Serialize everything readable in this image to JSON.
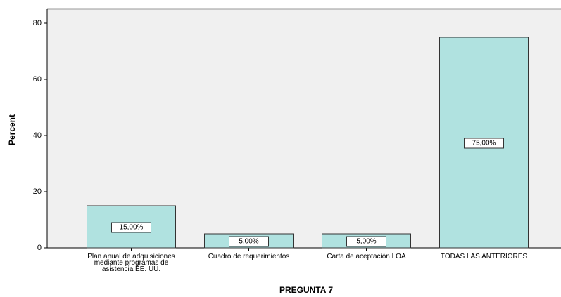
{
  "chart_data": {
    "type": "bar",
    "categories": [
      "Plan anual de adquisiciones mediante programas de asistencia EE. UU.",
      "Cuadro de requerimientos",
      "Carta de aceptación LOA",
      "TODAS LAS ANTERIORES"
    ],
    "values": [
      15,
      5,
      5,
      75
    ],
    "value_labels": [
      "15,00%",
      "5,00%",
      "5,00%",
      "75,00%"
    ],
    "color": "#b0e2e0",
    "xlabel": "PREGUNTA 7",
    "ylabel": "Percent",
    "ylim": [
      0,
      85
    ],
    "yticks": [
      0,
      20,
      40,
      60,
      80
    ],
    "grid": false
  }
}
